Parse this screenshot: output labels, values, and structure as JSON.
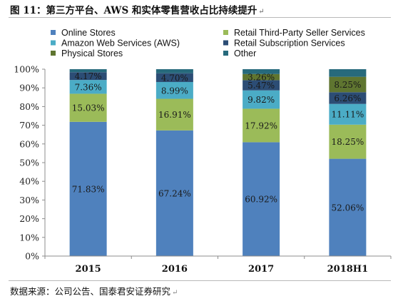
{
  "figure": {
    "title": "图 11：第三方平台、AWS 和实体零售营收占比持续提升",
    "source": "数据来源：公司公告、国泰君安证券研究",
    "paragraph_mark": "↵"
  },
  "chart_data": {
    "type": "bar",
    "stacked": true,
    "title": "",
    "xlabel": "",
    "ylabel": "",
    "ylim": [
      0,
      100
    ],
    "yticks": [
      "0%",
      "10%",
      "20%",
      "30%",
      "40%",
      "50%",
      "60%",
      "70%",
      "80%",
      "90%",
      "100%"
    ],
    "categories": [
      "2015",
      "2016",
      "2017",
      "2018H1"
    ],
    "legend_position": "top",
    "grid": false,
    "series": [
      {
        "name": "Online Stores",
        "color": "#4f81bd",
        "values": [
          71.83,
          67.24,
          60.92,
          52.06
        ],
        "labels": [
          "71.83%",
          "67.24%",
          "60.92%",
          "52.06%"
        ]
      },
      {
        "name": "Retail Third-Party Seller Services",
        "color": "#9bbb59",
        "values": [
          15.03,
          16.91,
          17.92,
          18.25
        ],
        "labels": [
          "15.03%",
          "16.91%",
          "17.92%",
          "18.25%"
        ]
      },
      {
        "name": "Amazon Web Services (AWS)",
        "color": "#4bacc6",
        "values": [
          7.36,
          8.99,
          9.82,
          11.11
        ],
        "labels": [
          "7.36%",
          "8.99%",
          "9.82%",
          "11.11%"
        ]
      },
      {
        "name": "Retail Subscription Services",
        "color": "#2c4d75",
        "values": [
          4.17,
          4.7,
          5.47,
          6.26
        ],
        "labels": [
          "4.17%",
          "4.70%",
          "5.47%",
          "6.26%"
        ]
      },
      {
        "name": "Physical Stores",
        "color": "#5f7530",
        "values": [
          0,
          0,
          3.26,
          8.25
        ],
        "labels": [
          "",
          "",
          "3.26%",
          "8.25%"
        ]
      },
      {
        "name": "Other",
        "color": "#276a7c",
        "values": [
          1.61,
          2.16,
          2.61,
          4.07
        ],
        "labels": [
          "",
          "",
          "",
          ""
        ]
      }
    ]
  }
}
